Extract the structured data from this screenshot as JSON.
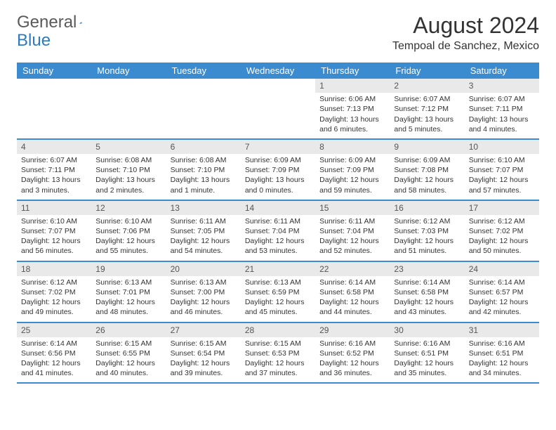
{
  "brand": {
    "part1": "General",
    "part2": "Blue"
  },
  "title": "August 2024",
  "location": "Tempoal de Sanchez, Mexico",
  "colors": {
    "header_bg": "#3b8bd0",
    "header_text": "#ffffff",
    "daynum_bg": "#e9e9e9",
    "week_border": "#3b8bd0",
    "body_text": "#333333",
    "brand_gray": "#5a5a5a",
    "brand_blue": "#2c7bc0"
  },
  "day_names": [
    "Sunday",
    "Monday",
    "Tuesday",
    "Wednesday",
    "Thursday",
    "Friday",
    "Saturday"
  ],
  "weeks": [
    [
      null,
      null,
      null,
      null,
      {
        "d": "1",
        "sr": "6:06 AM",
        "ss": "7:13 PM",
        "dl": "13 hours and 6 minutes."
      },
      {
        "d": "2",
        "sr": "6:07 AM",
        "ss": "7:12 PM",
        "dl": "13 hours and 5 minutes."
      },
      {
        "d": "3",
        "sr": "6:07 AM",
        "ss": "7:11 PM",
        "dl": "13 hours and 4 minutes."
      }
    ],
    [
      {
        "d": "4",
        "sr": "6:07 AM",
        "ss": "7:11 PM",
        "dl": "13 hours and 3 minutes."
      },
      {
        "d": "5",
        "sr": "6:08 AM",
        "ss": "7:10 PM",
        "dl": "13 hours and 2 minutes."
      },
      {
        "d": "6",
        "sr": "6:08 AM",
        "ss": "7:10 PM",
        "dl": "13 hours and 1 minute."
      },
      {
        "d": "7",
        "sr": "6:09 AM",
        "ss": "7:09 PM",
        "dl": "13 hours and 0 minutes."
      },
      {
        "d": "8",
        "sr": "6:09 AM",
        "ss": "7:09 PM",
        "dl": "12 hours and 59 minutes."
      },
      {
        "d": "9",
        "sr": "6:09 AM",
        "ss": "7:08 PM",
        "dl": "12 hours and 58 minutes."
      },
      {
        "d": "10",
        "sr": "6:10 AM",
        "ss": "7:07 PM",
        "dl": "12 hours and 57 minutes."
      }
    ],
    [
      {
        "d": "11",
        "sr": "6:10 AM",
        "ss": "7:07 PM",
        "dl": "12 hours and 56 minutes."
      },
      {
        "d": "12",
        "sr": "6:10 AM",
        "ss": "7:06 PM",
        "dl": "12 hours and 55 minutes."
      },
      {
        "d": "13",
        "sr": "6:11 AM",
        "ss": "7:05 PM",
        "dl": "12 hours and 54 minutes."
      },
      {
        "d": "14",
        "sr": "6:11 AM",
        "ss": "7:04 PM",
        "dl": "12 hours and 53 minutes."
      },
      {
        "d": "15",
        "sr": "6:11 AM",
        "ss": "7:04 PM",
        "dl": "12 hours and 52 minutes."
      },
      {
        "d": "16",
        "sr": "6:12 AM",
        "ss": "7:03 PM",
        "dl": "12 hours and 51 minutes."
      },
      {
        "d": "17",
        "sr": "6:12 AM",
        "ss": "7:02 PM",
        "dl": "12 hours and 50 minutes."
      }
    ],
    [
      {
        "d": "18",
        "sr": "6:12 AM",
        "ss": "7:02 PM",
        "dl": "12 hours and 49 minutes."
      },
      {
        "d": "19",
        "sr": "6:13 AM",
        "ss": "7:01 PM",
        "dl": "12 hours and 48 minutes."
      },
      {
        "d": "20",
        "sr": "6:13 AM",
        "ss": "7:00 PM",
        "dl": "12 hours and 46 minutes."
      },
      {
        "d": "21",
        "sr": "6:13 AM",
        "ss": "6:59 PM",
        "dl": "12 hours and 45 minutes."
      },
      {
        "d": "22",
        "sr": "6:14 AM",
        "ss": "6:58 PM",
        "dl": "12 hours and 44 minutes."
      },
      {
        "d": "23",
        "sr": "6:14 AM",
        "ss": "6:58 PM",
        "dl": "12 hours and 43 minutes."
      },
      {
        "d": "24",
        "sr": "6:14 AM",
        "ss": "6:57 PM",
        "dl": "12 hours and 42 minutes."
      }
    ],
    [
      {
        "d": "25",
        "sr": "6:14 AM",
        "ss": "6:56 PM",
        "dl": "12 hours and 41 minutes."
      },
      {
        "d": "26",
        "sr": "6:15 AM",
        "ss": "6:55 PM",
        "dl": "12 hours and 40 minutes."
      },
      {
        "d": "27",
        "sr": "6:15 AM",
        "ss": "6:54 PM",
        "dl": "12 hours and 39 minutes."
      },
      {
        "d": "28",
        "sr": "6:15 AM",
        "ss": "6:53 PM",
        "dl": "12 hours and 37 minutes."
      },
      {
        "d": "29",
        "sr": "6:16 AM",
        "ss": "6:52 PM",
        "dl": "12 hours and 36 minutes."
      },
      {
        "d": "30",
        "sr": "6:16 AM",
        "ss": "6:51 PM",
        "dl": "12 hours and 35 minutes."
      },
      {
        "d": "31",
        "sr": "6:16 AM",
        "ss": "6:51 PM",
        "dl": "12 hours and 34 minutes."
      }
    ]
  ],
  "labels": {
    "sunrise": "Sunrise:",
    "sunset": "Sunset:",
    "daylight": "Daylight:"
  }
}
